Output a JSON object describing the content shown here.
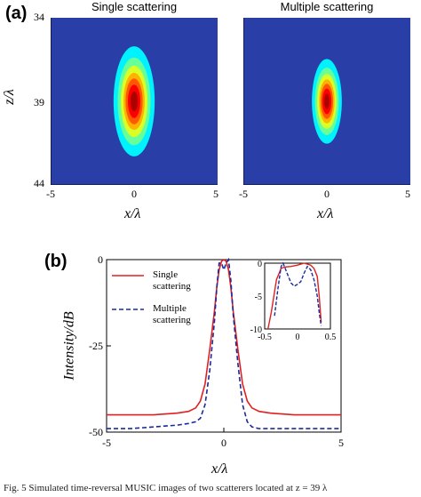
{
  "figure": {
    "panel_a_label": "(a)",
    "panel_b_label": "(b)",
    "caption": "Fig. 5  Simulated time-reversal MUSIC images of two scatterers located at z = 39 λ"
  },
  "chart_data": [
    {
      "type": "heatmap",
      "title": "Single scattering",
      "xlabel": "x/λ",
      "ylabel": "z/λ",
      "xlim": [
        -5,
        5
      ],
      "ylim": [
        34,
        44
      ],
      "xticks": [
        "-5",
        "0",
        "5"
      ],
      "yticks": [
        "34",
        "39",
        "44"
      ],
      "colormap": "jet",
      "background_color": "#2a3ea8",
      "peak": {
        "x": 0,
        "z": 39,
        "width_x": 0.55,
        "width_z": 1.3
      }
    },
    {
      "type": "heatmap",
      "title": "Multiple scattering",
      "xlabel": "x/λ",
      "ylabel": "",
      "xlim": [
        -5,
        5
      ],
      "ylim": [
        34,
        44
      ],
      "xticks": [
        "-5",
        "0",
        "5"
      ],
      "colormap": "jet",
      "background_color": "#2a3ea8",
      "peak": {
        "x": 0,
        "z": 39,
        "width_x": 0.4,
        "width_z": 1.0
      }
    },
    {
      "type": "line",
      "xlabel": "x/λ",
      "ylabel": "Intensity/dB",
      "xlim": [
        -5,
        5
      ],
      "ylim": [
        -50,
        0
      ],
      "xticks": [
        "-5",
        "0",
        "5"
      ],
      "yticks": [
        "0",
        "-25",
        "-50"
      ],
      "legend_position": "top-left",
      "grid": false,
      "series": [
        {
          "name": "Single scattering",
          "color": "#e02020",
          "style": "solid",
          "x": [
            -5,
            -4,
            -3,
            -2,
            -1.5,
            -1.2,
            -1,
            -0.8,
            -0.6,
            -0.4,
            -0.3,
            -0.2,
            -0.1,
            0,
            0.1,
            0.2,
            0.3,
            0.4,
            0.6,
            0.8,
            1,
            1.2,
            1.5,
            2,
            3,
            4,
            5
          ],
          "y": [
            -45,
            -45,
            -45,
            -44.5,
            -44,
            -43,
            -41,
            -36,
            -26,
            -15,
            -8,
            -3,
            -0.5,
            0,
            -0.5,
            -3,
            -8,
            -15,
            -26,
            -36,
            -41,
            -43,
            -44,
            -44.5,
            -45,
            -45,
            -45
          ]
        },
        {
          "name": "Multiple scattering",
          "color": "#1a2a9a",
          "style": "dashed",
          "x": [
            -5,
            -4,
            -3,
            -2,
            -1.5,
            -1.2,
            -1,
            -0.8,
            -0.6,
            -0.4,
            -0.3,
            -0.2,
            -0.1,
            0,
            0.1,
            0.2,
            0.3,
            0.4,
            0.6,
            0.8,
            1,
            1.2,
            1.5,
            2,
            3,
            4,
            5
          ],
          "y": [
            -49,
            -49,
            -48.5,
            -48,
            -47.5,
            -47,
            -46,
            -42,
            -32,
            -18,
            -8,
            -1,
            -1,
            -3,
            -1,
            0,
            -6,
            -16,
            -30,
            -42,
            -47,
            -48.5,
            -49,
            -49,
            -49,
            -49,
            -49
          ]
        }
      ]
    },
    {
      "type": "line",
      "note": "inset",
      "xlim": [
        -0.5,
        0.5
      ],
      "ylim": [
        -10,
        0
      ],
      "xticks": [
        "-0.5",
        "0",
        "0.5"
      ],
      "yticks": [
        "0",
        "-5",
        "-10"
      ],
      "series": [
        {
          "color": "#e02020",
          "style": "solid",
          "x": [
            -0.45,
            -0.4,
            -0.32,
            -0.25,
            -0.2,
            -0.1,
            0,
            0.1,
            0.2,
            0.25,
            0.3,
            0.33,
            0.36
          ],
          "y": [
            -10,
            -7.5,
            -2.5,
            -0.8,
            -0.6,
            -0.5,
            -0.3,
            0,
            -0.3,
            -0.8,
            -2,
            -5,
            -9
          ]
        },
        {
          "color": "#1a2a9a",
          "style": "dashed",
          "x": [
            -0.35,
            -0.3,
            -0.25,
            -0.22,
            -0.18,
            -0.1,
            -0.05,
            0,
            0.05,
            0.1,
            0.15,
            0.2,
            0.25,
            0.3,
            0.33,
            0.36
          ],
          "y": [
            -8,
            -4,
            -0.5,
            0,
            -1,
            -3,
            -3.5,
            -3.2,
            -2.8,
            -1.5,
            -0.5,
            -1,
            -2.5,
            -5,
            -7.5,
            -9.5
          ]
        }
      ]
    }
  ]
}
